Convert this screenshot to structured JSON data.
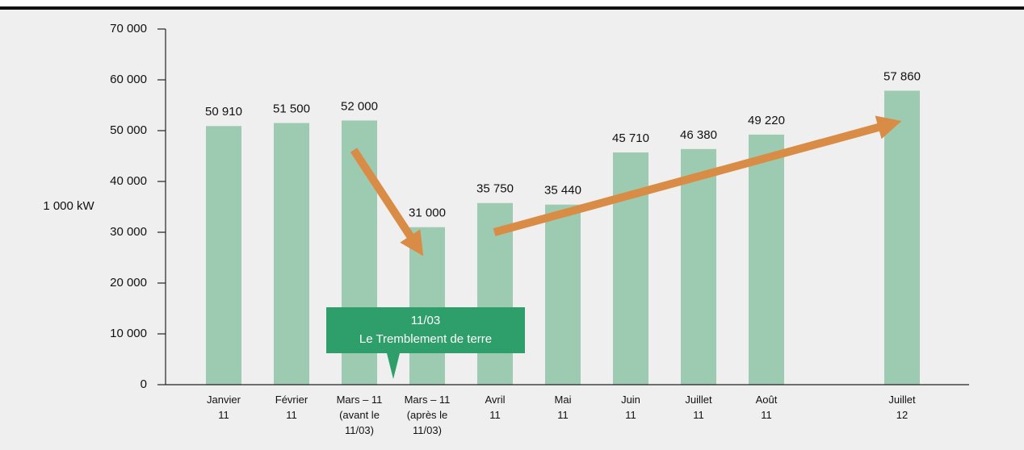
{
  "chart_data": {
    "type": "bar",
    "y_label": "1 000 kW",
    "annotation": [
      "11/03",
      "Le Tremblement de terre"
    ],
    "categories": [
      "Janvier\n11",
      "Février\n11",
      "Mars – 11\n(avant le\n11/03)",
      "Mars – 11\n(après le\n11/03)",
      "Avril\n11",
      "Mai\n11",
      "Juin\n11",
      "Juillet\n11",
      "Août\n11",
      null,
      "Juillet\n12"
    ],
    "values": [
      50910,
      51500,
      52000,
      31000,
      35750,
      35440,
      45710,
      46380,
      49220,
      null,
      57860
    ],
    "value_labels": [
      "50 910",
      "51 500",
      "52 000",
      "31 000",
      "35 750",
      "35 440",
      "45 710",
      "46 380",
      "49 220",
      null,
      "57 860"
    ],
    "color": "#9dcbb1",
    "ylim": [
      0,
      70000
    ],
    "yticks": [
      {
        "value": 0,
        "label": "0"
      },
      {
        "value": 10000,
        "label": "10 000"
      },
      {
        "value": 20000,
        "label": "20 000"
      },
      {
        "value": 30000,
        "label": "30 000"
      },
      {
        "value": 40000,
        "label": "40 000"
      },
      {
        "value": 50000,
        "label": "50 000"
      },
      {
        "value": 60000,
        "label": "60 000"
      },
      {
        "value": 70000,
        "label": "70 000"
      }
    ],
    "grid": false
  }
}
